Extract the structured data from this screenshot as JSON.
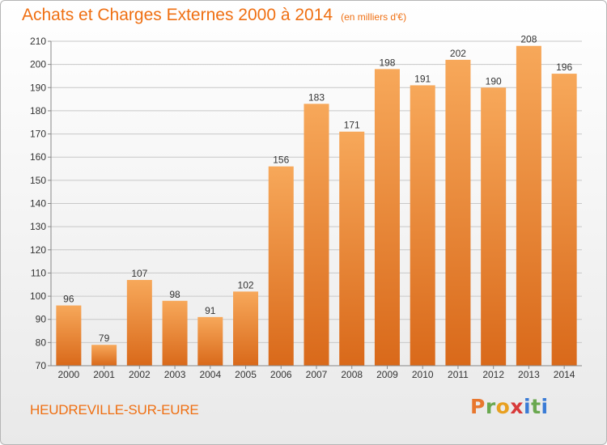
{
  "header": {
    "title": "Achats et Charges Externes 2000 à 2014",
    "unit": "(en milliers d'€)"
  },
  "footer": {
    "place": "HEUDREVILLE-SUR-EURE",
    "logo_letters": [
      "P",
      "r",
      "o",
      "x",
      "i",
      "t",
      "i"
    ],
    "logo_colors": [
      "#e8772e",
      "#6aa84f",
      "#e8a020",
      "#d83a3a",
      "#3a7bd5",
      "#6aa84f",
      "#3a7bd5"
    ]
  },
  "chart_data": {
    "type": "bar",
    "title": "Achats et Charges Externes 2000 à 2014",
    "subtitle": "(en milliers d'€)",
    "xlabel": "",
    "ylabel": "",
    "categories": [
      "2000",
      "2001",
      "2002",
      "2003",
      "2004",
      "2005",
      "2006",
      "2007",
      "2008",
      "2009",
      "2010",
      "2011",
      "2012",
      "2013",
      "2014"
    ],
    "values": [
      96,
      79,
      107,
      98,
      91,
      102,
      156,
      183,
      171,
      198,
      191,
      202,
      190,
      208,
      196
    ],
    "ylim": [
      70,
      210
    ],
    "yticks": [
      70,
      80,
      90,
      100,
      110,
      120,
      130,
      140,
      150,
      160,
      170,
      180,
      190,
      200,
      210
    ],
    "grid": true,
    "colors": {
      "bar_light": "#f7a85a",
      "bar_dark": "#d9691a",
      "grid": "#c8c8c8"
    }
  }
}
